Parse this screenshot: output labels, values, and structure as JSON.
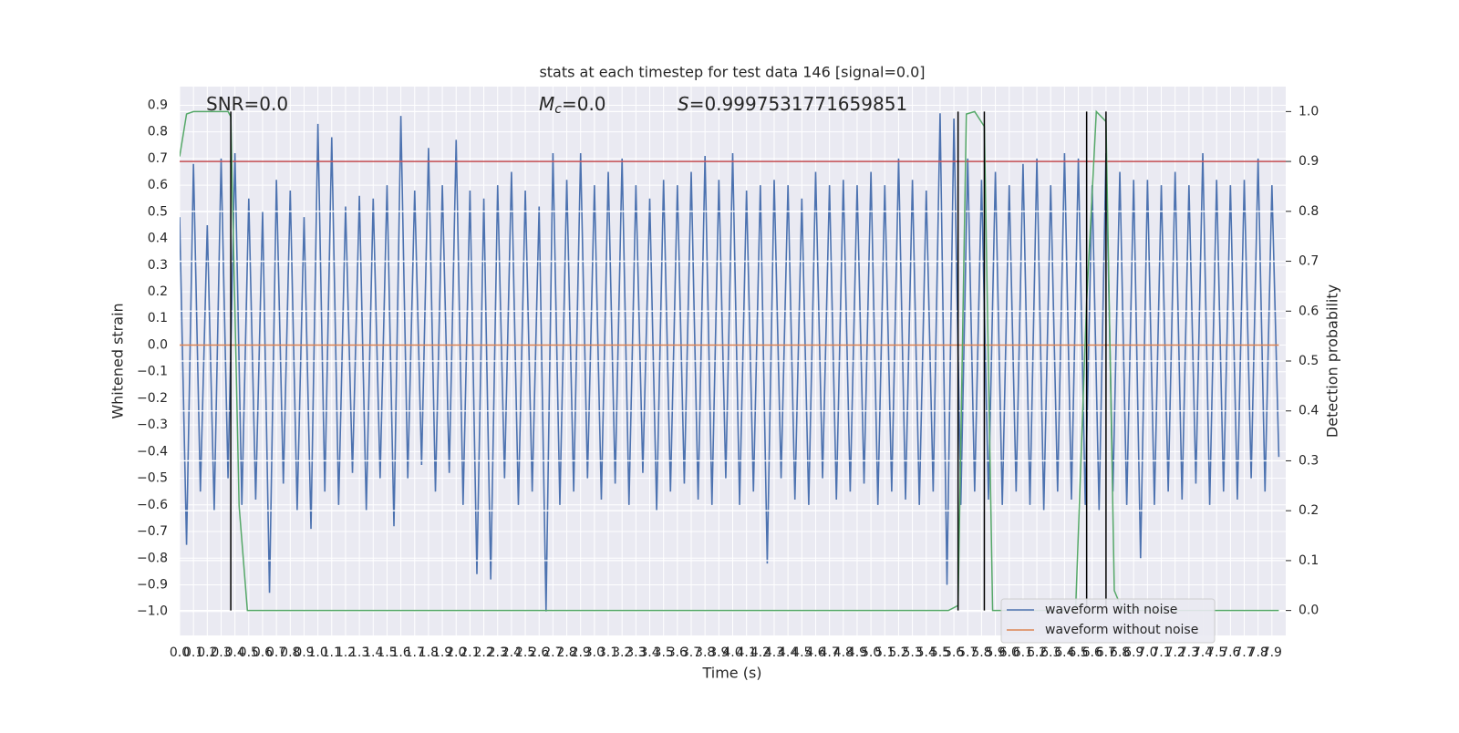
{
  "chart_data": {
    "type": "line",
    "title": "stats at each timestep for test data 146 [signal=0.0]",
    "x_label": "Time (s)",
    "y_label": "Whitened strain",
    "y2_label": "Detection probability",
    "annotations": [
      {
        "text": "SNR=0.0"
      },
      {
        "symbol": "M",
        "sub": "c",
        "text": "=0.0"
      },
      {
        "symbol": "S",
        "text": "=0.9997531771659851"
      }
    ],
    "grid": true,
    "background": "#eaeaf2",
    "legend": "lower right",
    "xlim": [
      0,
      8
    ],
    "ylim": [
      -1.09,
      0.97
    ],
    "y2lim": [
      -0.05,
      1.05
    ],
    "xticks": [
      {
        "value": 0,
        "label": "0.0"
      },
      0.1,
      0.2,
      0.3,
      0.4,
      0.5,
      0.6,
      0.7,
      0.8,
      0.9,
      {
        "value": 1,
        "label": "1.0"
      },
      1.1,
      1.2,
      1.3,
      1.4,
      1.5,
      1.6,
      1.7,
      1.8,
      1.9,
      {
        "value": 2,
        "label": "2.0"
      },
      2.1,
      2.2,
      2.3,
      2.4,
      2.5,
      2.6,
      2.7,
      2.8,
      2.9,
      {
        "value": 3,
        "label": "3.0"
      },
      3.1,
      3.2,
      3.3,
      3.4,
      3.5,
      3.6,
      3.7,
      3.8,
      3.9,
      {
        "value": 4,
        "label": "4.0"
      },
      4.1,
      4.2,
      4.3,
      4.4,
      4.5,
      4.6,
      4.7,
      4.8,
      4.9,
      {
        "value": 5,
        "label": "5.0"
      },
      5.1,
      5.2,
      5.3,
      5.4,
      5.5,
      5.6,
      5.7,
      5.8,
      5.9,
      {
        "value": 6,
        "label": "6.0"
      },
      6.1,
      6.2,
      6.3,
      6.4,
      6.5,
      6.6,
      6.7,
      6.8,
      6.9,
      {
        "value": 7,
        "label": "7.0"
      },
      7.1,
      7.2,
      7.3,
      7.4,
      7.5,
      7.6,
      7.7,
      7.8,
      7.9
    ],
    "yticks": [
      {
        "value": -1,
        "label": "−1.0"
      },
      {
        "value": -0.9,
        "label": "−0.9"
      },
      {
        "value": -0.8,
        "label": "−0.8"
      },
      {
        "value": -0.7,
        "label": "−0.7"
      },
      {
        "value": -0.6,
        "label": "−0.6"
      },
      {
        "value": -0.5,
        "label": "−0.5"
      },
      {
        "value": -0.4,
        "label": "−0.4"
      },
      {
        "value": -0.3,
        "label": "−0.3"
      },
      {
        "value": -0.2,
        "label": "−0.2"
      },
      {
        "value": -0.1,
        "label": "−0.1"
      },
      {
        "value": 0,
        "label": "0.0"
      },
      0.1,
      0.2,
      0.3,
      0.4,
      0.5,
      0.6,
      0.7,
      0.8,
      0.9
    ],
    "y2ticks": [
      {
        "value": 0,
        "label": "0.0"
      },
      0.1,
      0.2,
      0.3,
      0.4,
      0.5,
      0.6,
      0.7,
      0.8,
      0.9,
      {
        "value": 1,
        "label": "1.0"
      }
    ],
    "series": [
      {
        "name": "waveform with noise",
        "color": "#4c72b0",
        "x": [
          0,
          0.05,
          0.1,
          0.15,
          0.2,
          0.25,
          0.3,
          0.35,
          0.4,
          0.45,
          0.5,
          0.55,
          0.6,
          0.65,
          0.7,
          0.75,
          0.8,
          0.85,
          0.9,
          0.95,
          1,
          1.05,
          1.1,
          1.15,
          1.2,
          1.25,
          1.3,
          1.35,
          1.4,
          1.45,
          1.5,
          1.55,
          1.6,
          1.65,
          1.7,
          1.75,
          1.8,
          1.85,
          1.9,
          1.95,
          2,
          2.05,
          2.1,
          2.15,
          2.2,
          2.25,
          2.3,
          2.35,
          2.4,
          2.45,
          2.5,
          2.55,
          2.6,
          2.65,
          2.7,
          2.75,
          2.8,
          2.85,
          2.9,
          2.95,
          3,
          3.05,
          3.1,
          3.15,
          3.2,
          3.25,
          3.3,
          3.35,
          3.4,
          3.45,
          3.5,
          3.55,
          3.6,
          3.65,
          3.7,
          3.75,
          3.8,
          3.85,
          3.9,
          3.95,
          4,
          4.05,
          4.1,
          4.15,
          4.2,
          4.25,
          4.3,
          4.35,
          4.4,
          4.45,
          4.5,
          4.55,
          4.6,
          4.65,
          4.7,
          4.75,
          4.8,
          4.85,
          4.9,
          4.95,
          5,
          5.05,
          5.1,
          5.15,
          5.2,
          5.25,
          5.3,
          5.35,
          5.4,
          5.45,
          5.5,
          5.55,
          5.6,
          5.65,
          5.7,
          5.75,
          5.8,
          5.85,
          5.9,
          5.95,
          6,
          6.05,
          6.1,
          6.15,
          6.2,
          6.25,
          6.3,
          6.35,
          6.4,
          6.45,
          6.5,
          6.55,
          6.6,
          6.65,
          6.7,
          6.75,
          6.8,
          6.85,
          6.9,
          6.95,
          7,
          7.05,
          7.1,
          7.15,
          7.2,
          7.25,
          7.3,
          7.35,
          7.4,
          7.45,
          7.5,
          7.55,
          7.6,
          7.65,
          7.7,
          7.75,
          7.8,
          7.85,
          7.9,
          7.95
        ],
        "values": [
          0.48,
          -0.75,
          0.68,
          -0.55,
          0.45,
          -0.62,
          0.7,
          -0.5,
          0.72,
          -0.6,
          0.55,
          -0.58,
          0.5,
          -0.93,
          0.62,
          -0.52,
          0.58,
          -0.62,
          0.48,
          -0.69,
          0.83,
          -0.55,
          0.78,
          -0.6,
          0.52,
          -0.48,
          0.56,
          -0.62,
          0.55,
          -0.5,
          0.6,
          -0.68,
          0.86,
          -0.5,
          0.58,
          -0.45,
          0.74,
          -0.55,
          0.6,
          -0.48,
          0.77,
          -0.6,
          0.58,
          -0.86,
          0.55,
          -0.88,
          0.6,
          -0.5,
          0.65,
          -0.6,
          0.58,
          -0.55,
          0.52,
          -1.0,
          0.72,
          -0.6,
          0.62,
          -0.55,
          0.72,
          -0.5,
          0.6,
          -0.58,
          0.65,
          -0.52,
          0.7,
          -0.6,
          0.6,
          -0.48,
          0.55,
          -0.62,
          0.62,
          -0.55,
          0.6,
          -0.52,
          0.65,
          -0.58,
          0.71,
          -0.6,
          0.62,
          -0.5,
          0.72,
          -0.6,
          0.58,
          -0.55,
          0.6,
          -0.82,
          0.62,
          -0.5,
          0.6,
          -0.58,
          0.55,
          -0.6,
          0.65,
          -0.5,
          0.6,
          -0.58,
          0.62,
          -0.55,
          0.6,
          -0.52,
          0.65,
          -0.6,
          0.6,
          -0.55,
          0.7,
          -0.58,
          0.62,
          -0.6,
          0.58,
          -0.55,
          0.87,
          -0.9,
          0.85,
          -0.6,
          0.7,
          -0.55,
          0.62,
          -0.58,
          0.65,
          -0.6,
          0.6,
          -0.55,
          0.68,
          -0.6,
          0.7,
          -0.62,
          0.6,
          -0.55,
          0.72,
          -0.58,
          0.7,
          -0.6,
          0.6,
          -0.62,
          0.72,
          -0.55,
          0.65,
          -0.6,
          0.62,
          -0.8,
          0.62,
          -0.6,
          0.6,
          -0.55,
          0.65,
          -0.58,
          0.6,
          -0.52,
          0.72,
          -0.6,
          0.62,
          -0.55,
          0.6,
          -0.58,
          0.62,
          -0.5,
          0.7,
          -0.55,
          0.6,
          -0.42
        ]
      },
      {
        "name": "waveform without noise",
        "color": "#dd8452",
        "x": [
          0,
          7.95
        ],
        "values": [
          0,
          0
        ]
      },
      {
        "color": "#55a868",
        "axis": "y2",
        "x": [
          0,
          0.05,
          0.1,
          0.35,
          0.37,
          0.43,
          0.49,
          5.56,
          5.63,
          5.69,
          5.75,
          5.82,
          5.88,
          6.48,
          6.56,
          6.63,
          6.7,
          6.76,
          6.82,
          7.95
        ],
        "values": [
          0.91,
          0.995,
          1.0,
          1.0,
          0.99,
          0.21,
          0,
          0,
          0.01,
          0.995,
          1.0,
          0.97,
          0,
          0,
          0.62,
          1.0,
          0.98,
          0.04,
          0,
          0
        ]
      }
    ],
    "hlines": [
      {
        "value": 0.9,
        "axis": "y2",
        "color": "#c44e52"
      }
    ],
    "vlines": {
      "x": [
        0.37,
        5.63,
        5.82,
        6.56,
        6.7
      ],
      "range": [
        0,
        1
      ],
      "axis": "y2",
      "color": "#000000"
    }
  }
}
